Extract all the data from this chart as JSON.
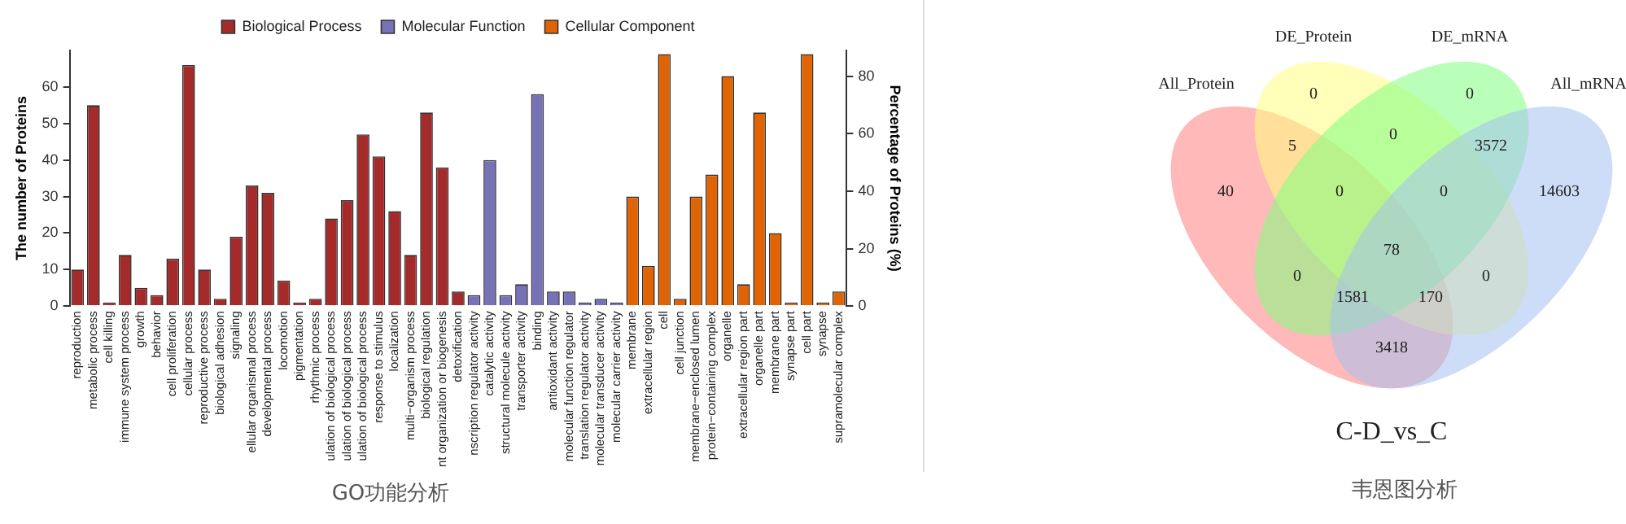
{
  "chart_data": [
    {
      "type": "bar",
      "categories": [
        "reproduction",
        "metabolic process",
        "cell killing",
        "immune system process",
        "growth",
        "behavior",
        "cell proliferation",
        "cellular process",
        "reproductive process",
        "biological adhesion",
        "signaling",
        "ellular organismal process",
        "developmental process",
        "locomotion",
        "pigmentation",
        "rhythmic process",
        "ulation of biological process",
        "ulation of biological process",
        "ulation of biological process",
        "response to stimulus",
        "localization",
        "multi−organism process",
        "biological regulation",
        "nt organization or biogenesis",
        "detoxification",
        "nscription regulator activity",
        "catalytic activity",
        "structural molecule activity",
        "transporter activity",
        "binding",
        "antioxidant activity",
        "molecular function regulator",
        "translation regulator activity",
        "molecular transducer activity",
        "molecular carrier activity",
        "membrane",
        "extracellular region",
        "cell",
        "cell junction",
        "membrane−enclosed lumen",
        "protein−containing complex",
        "organelle",
        "extracellular region part",
        "organelle part",
        "membrane part",
        "synapse part",
        "cell part",
        "synapse",
        "supramolecular complex"
      ],
      "series": [
        {
          "name": "Biological Process",
          "color": "#a52a2a",
          "values": [
            10,
            55,
            1,
            14,
            5,
            3,
            13,
            66,
            10,
            2,
            19,
            33,
            31,
            7,
            1,
            2,
            24,
            29,
            47,
            41,
            26,
            14,
            53,
            38,
            4,
            null,
            null,
            null,
            null,
            null,
            null,
            null,
            null,
            null,
            null,
            null,
            null,
            null,
            null,
            null,
            null,
            null,
            null,
            null,
            null,
            null,
            null,
            null,
            null
          ]
        },
        {
          "name": "Molecular Function",
          "color": "#7772b7",
          "values": [
            null,
            null,
            null,
            null,
            null,
            null,
            null,
            null,
            null,
            null,
            null,
            null,
            null,
            null,
            null,
            null,
            null,
            null,
            null,
            null,
            null,
            null,
            null,
            null,
            null,
            3,
            40,
            3,
            6,
            58,
            4,
            4,
            1,
            2,
            1,
            null,
            null,
            null,
            null,
            null,
            null,
            null,
            null,
            null,
            null,
            null,
            null,
            null,
            null
          ]
        },
        {
          "name": "Cellular Component",
          "color": "#e16404",
          "values": [
            null,
            null,
            null,
            null,
            null,
            null,
            null,
            null,
            null,
            null,
            null,
            null,
            null,
            null,
            null,
            null,
            null,
            null,
            null,
            null,
            null,
            null,
            null,
            null,
            null,
            null,
            null,
            null,
            null,
            null,
            null,
            null,
            null,
            null,
            null,
            30,
            11,
            69,
            2,
            30,
            36,
            63,
            6,
            53,
            20,
            1,
            69,
            1,
            4
          ]
        }
      ],
      "ylim": [
        0,
        70
      ],
      "yticks": [
        0,
        10,
        20,
        30,
        40,
        50,
        60
      ],
      "y2lim": [
        0,
        89
      ],
      "y2ticks": [
        0,
        20,
        40,
        60,
        80
      ],
      "ylabel": "The number of Proteins",
      "y2label": "Percentage of Proteins (%)",
      "legend": "top",
      "grid": false,
      "annotations": [
        "GO功能分析"
      ]
    },
    {
      "type": "other",
      "title": "C-D_vs_C",
      "annotations": [
        "All_Protein",
        "DE_Protein",
        "DE_mRNA",
        "All_mRNA",
        "40",
        "0",
        "0",
        "14603",
        "5",
        "0",
        "3572",
        "0",
        "0",
        "78",
        "0",
        "1581",
        "170",
        "0",
        "3418",
        "韦恩图分析"
      ]
    }
  ]
}
